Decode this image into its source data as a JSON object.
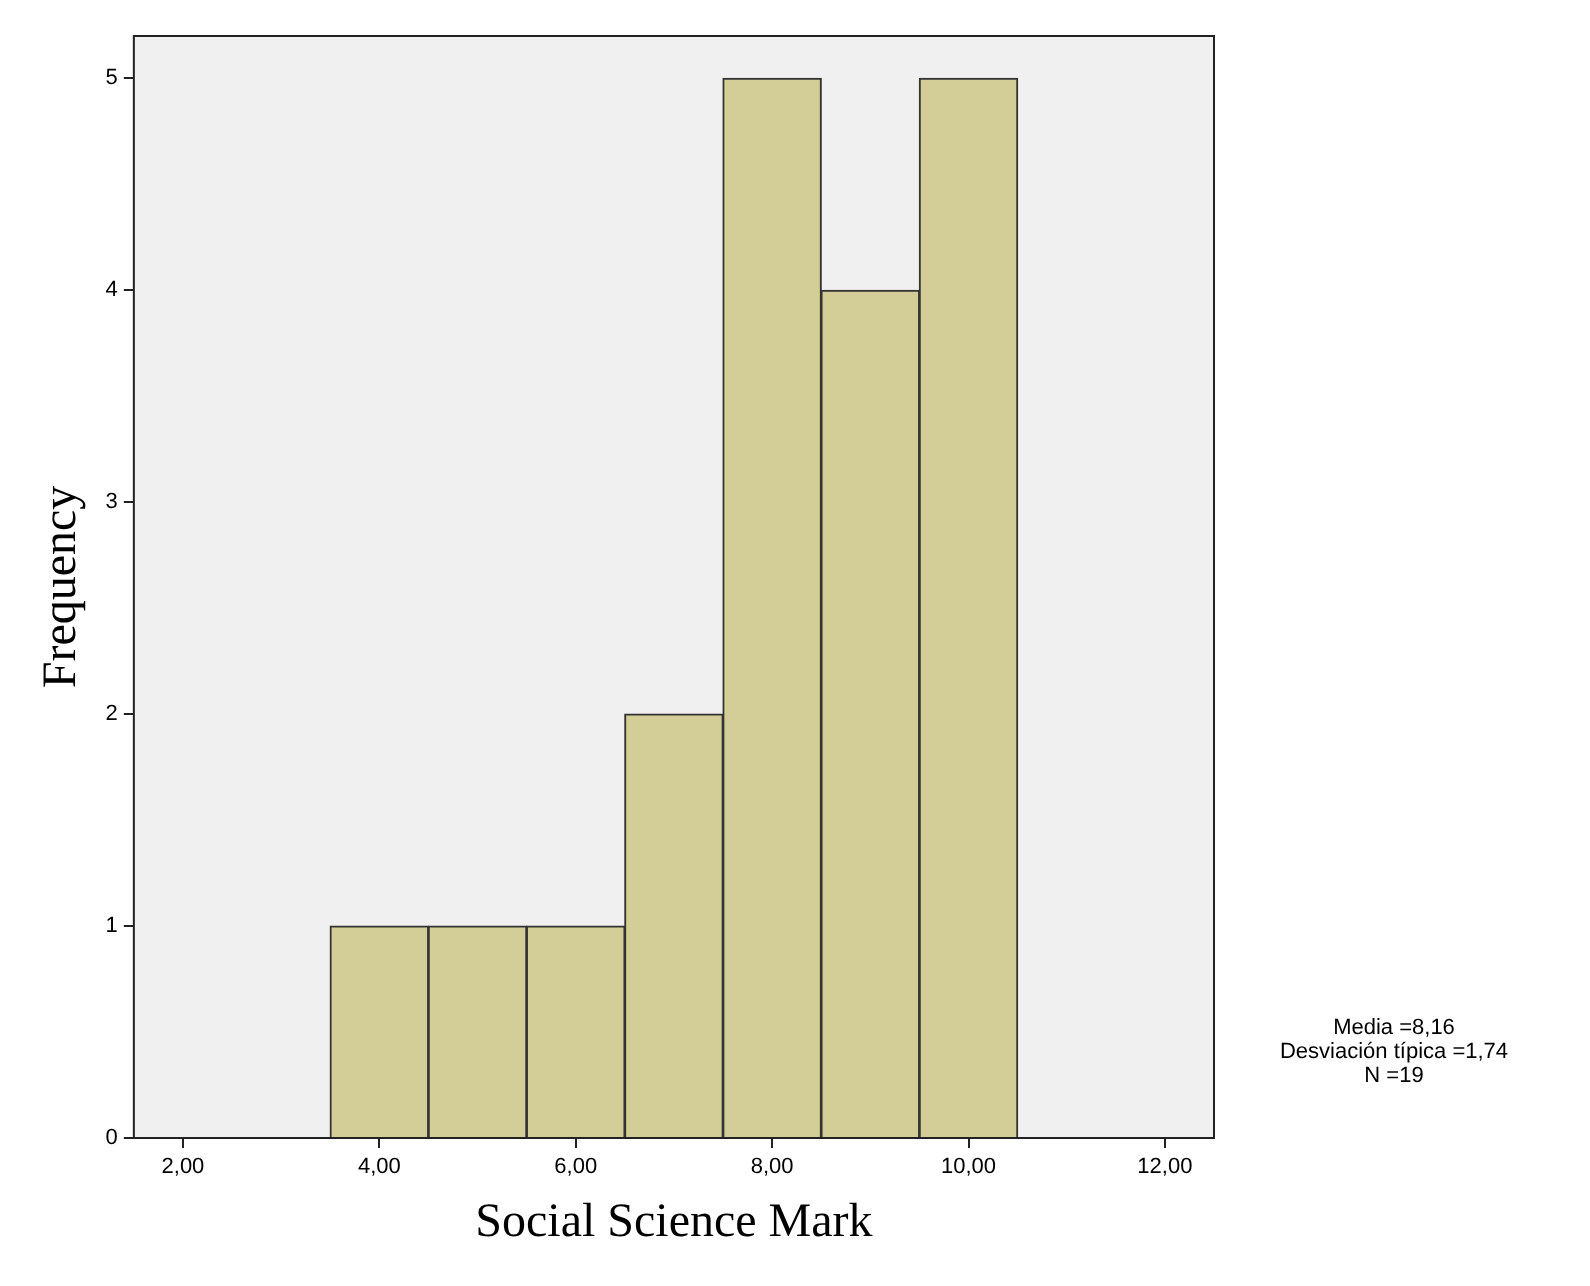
{
  "chart_data": {
    "type": "histogram",
    "xlabel": "Social Science Mark",
    "ylabel": "Frequency",
    "bins": [
      3.5,
      4.5,
      5.5,
      6.5,
      7.5,
      8.5,
      9.5,
      10.5
    ],
    "values": [
      1,
      1,
      1,
      2,
      5,
      4,
      5
    ],
    "color": "#d3ce97",
    "xlim": [
      1.5,
      12.5
    ],
    "xticks": [
      {
        "value": 2,
        "label": "2,00"
      },
      {
        "value": 4,
        "label": "4,00"
      },
      {
        "value": 6,
        "label": "6,00"
      },
      {
        "value": 8,
        "label": "8,00"
      },
      {
        "value": 10,
        "label": "10,00"
      },
      {
        "value": 12,
        "label": "12,00"
      }
    ],
    "ylim": [
      0,
      5.2
    ],
    "yticks": [
      0,
      1,
      2,
      3,
      4,
      5
    ],
    "grid": false,
    "legend": false,
    "annotations": [
      "Media =8,16",
      "Desviación típica =1,74",
      "N =19"
    ]
  }
}
